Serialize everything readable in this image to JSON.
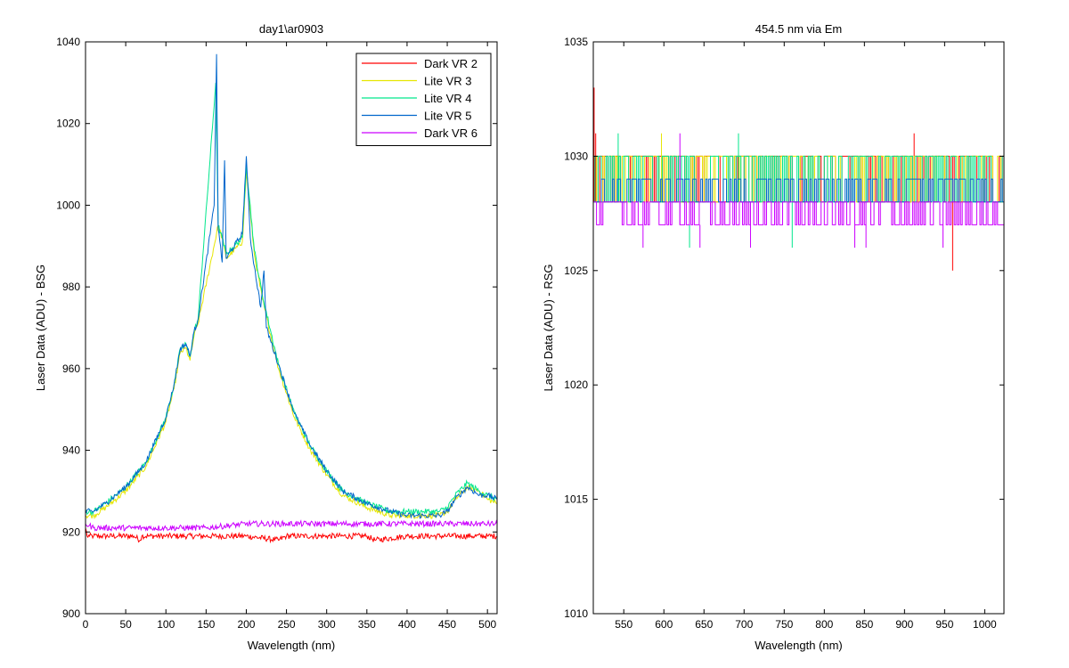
{
  "chart_data": [
    {
      "type": "line",
      "title": "day1\\ar0903",
      "xlabel": "Wavelength (nm)",
      "ylabel": "Laser Data (ADU) - BSG",
      "xlim": [
        0,
        512
      ],
      "ylim": [
        900,
        1040
      ],
      "xticks": [
        0,
        50,
        100,
        150,
        200,
        250,
        300,
        350,
        400,
        450,
        500
      ],
      "yticks": [
        900,
        920,
        940,
        960,
        980,
        1000,
        1020,
        1040
      ],
      "grid": false,
      "legend": "top-right",
      "series": [
        {
          "name": "Dark VR 2",
          "color": "#ff0000",
          "x": [
            0,
            2,
            5,
            10,
            20,
            40,
            60,
            68,
            70,
            80,
            100,
            150,
            200,
            240,
            250,
            300,
            350,
            360,
            400,
            450,
            480,
            500,
            512
          ],
          "y": [
            921,
            919,
            919,
            919,
            919,
            919,
            919,
            918,
            919,
            919,
            919,
            919,
            919,
            918,
            919,
            919,
            919,
            918,
            919,
            919,
            919,
            919,
            919
          ]
        },
        {
          "name": "Lite VR 3",
          "color": "#e6e600",
          "x": [
            0,
            10,
            25,
            50,
            75,
            100,
            110,
            118,
            125,
            130,
            135,
            140,
            165,
            170,
            175,
            195,
            200,
            210,
            220,
            240,
            260,
            280,
            300,
            320,
            350,
            380,
            400,
            420,
            440,
            450,
            460,
            475,
            490,
            500,
            512
          ],
          "y": [
            924,
            924,
            926,
            930,
            936,
            947,
            955,
            964,
            965,
            962,
            968,
            971,
            995,
            992,
            987,
            991,
            1008,
            988,
            977,
            960,
            948,
            940,
            934,
            929,
            926,
            924,
            924,
            924,
            924,
            925,
            928,
            931,
            930,
            928,
            927
          ]
        },
        {
          "name": "Lite VR 4",
          "color": "#00e68c",
          "x": [
            0,
            10,
            25,
            50,
            75,
            100,
            110,
            118,
            125,
            130,
            135,
            140,
            162,
            165,
            170,
            175,
            195,
            200,
            210,
            220,
            240,
            260,
            280,
            300,
            320,
            350,
            380,
            400,
            420,
            440,
            450,
            460,
            475,
            490,
            500,
            512
          ],
          "y": [
            925,
            925,
            927,
            931,
            937,
            948,
            956,
            965,
            966,
            963,
            969,
            972,
            1030,
            995,
            992,
            988,
            992,
            1010,
            989,
            978,
            961,
            949,
            941,
            935,
            930,
            927,
            925,
            925,
            925,
            925,
            926,
            929,
            932,
            930,
            929,
            928
          ]
        },
        {
          "name": "Lite VR 5",
          "color": "#0066cc",
          "x": [
            0,
            10,
            25,
            50,
            75,
            100,
            110,
            118,
            125,
            130,
            135,
            140,
            160,
            163,
            165,
            168,
            170,
            173,
            175,
            195,
            200,
            205,
            210,
            218,
            222,
            225,
            240,
            260,
            280,
            300,
            320,
            350,
            380,
            400,
            420,
            440,
            450,
            460,
            475,
            490,
            500,
            512
          ],
          "y": [
            925,
            925,
            927,
            931,
            937,
            948,
            956,
            965,
            966,
            963,
            969,
            972,
            1000,
            1037,
            994,
            990,
            986,
            1011,
            987,
            993,
            1012,
            992,
            985,
            975,
            984,
            970,
            961,
            949,
            941,
            935,
            930,
            927,
            925,
            924,
            924,
            924,
            925,
            928,
            931,
            929,
            929,
            928
          ]
        },
        {
          "name": "Dark VR 6",
          "color": "#cc00ff",
          "x": [
            0,
            10,
            50,
            100,
            150,
            200,
            250,
            300,
            350,
            400,
            450,
            500,
            512
          ],
          "y": [
            922,
            921,
            921,
            921,
            921,
            922,
            922,
            922,
            922,
            922,
            922,
            922,
            922
          ]
        }
      ]
    },
    {
      "type": "line",
      "title": "454.5 nm via Em",
      "xlabel": "Wavelength (nm)",
      "ylabel": "Laser Data (ADU) - RSG",
      "xlim": [
        512,
        1024
      ],
      "ylim": [
        1010,
        1035
      ],
      "xticks": [
        550,
        600,
        650,
        700,
        750,
        800,
        850,
        900,
        950,
        1000
      ],
      "yticks": [
        1010,
        1015,
        1020,
        1025,
        1030,
        1035
      ],
      "grid": false,
      "series": [
        {
          "color": "#ff0000",
          "band": [
            1028,
            1030
          ],
          "spikes": [
            {
              "x": 513,
              "y": 1033
            },
            {
              "x": 515,
              "y": 1031
            },
            {
              "x": 912,
              "y": 1031
            },
            {
              "x": 960,
              "y": 1025
            }
          ]
        },
        {
          "color": "#e6e600",
          "band": [
            1028,
            1030
          ],
          "spikes": [
            {
              "x": 597,
              "y": 1031
            }
          ]
        },
        {
          "color": "#00e68c",
          "band": [
            1028,
            1030
          ],
          "spikes": [
            {
              "x": 543,
              "y": 1031
            },
            {
              "x": 693,
              "y": 1031
            },
            {
              "x": 632,
              "y": 1026
            },
            {
              "x": 760,
              "y": 1026
            },
            {
              "x": 998,
              "y": 1027
            }
          ]
        },
        {
          "color": "#0066cc",
          "band": [
            1028,
            1029
          ],
          "spikes": []
        },
        {
          "color": "#cc00ff",
          "band": [
            1027,
            1028
          ],
          "spikes": [
            {
              "x": 574,
              "y": 1026
            },
            {
              "x": 620,
              "y": 1031
            },
            {
              "x": 645,
              "y": 1026
            },
            {
              "x": 708,
              "y": 1026
            },
            {
              "x": 838,
              "y": 1026
            },
            {
              "x": 852,
              "y": 1026
            },
            {
              "x": 948,
              "y": 1026
            }
          ]
        }
      ]
    }
  ]
}
